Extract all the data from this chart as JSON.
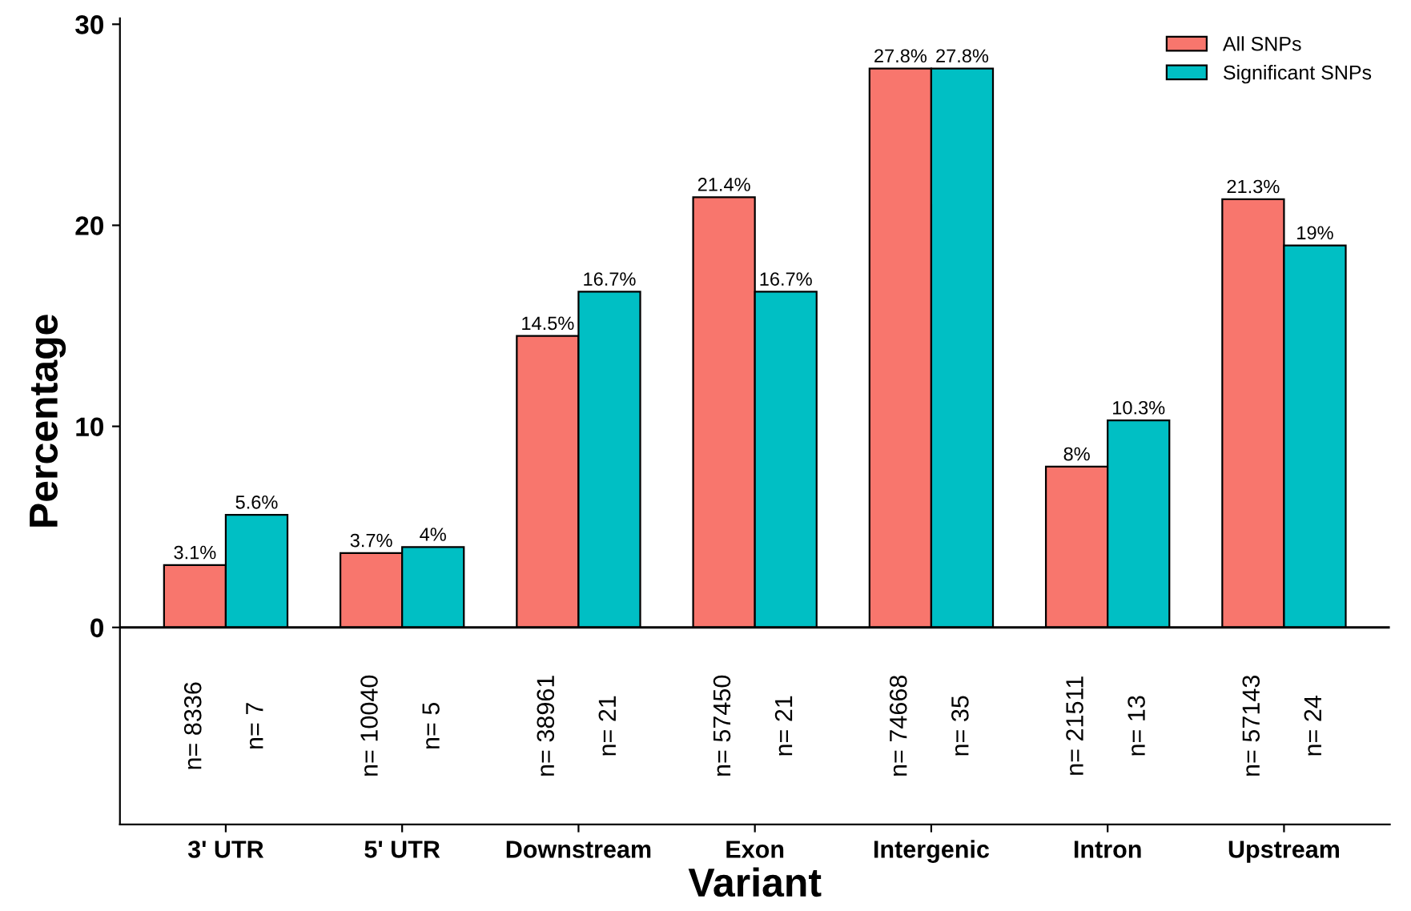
{
  "chart_data": {
    "type": "bar",
    "xlabel": "Variant",
    "ylabel": "Percentage",
    "categories": [
      "3' UTR",
      "5' UTR",
      "Downstream",
      "Exon",
      "Intergenic",
      "Intron",
      "Upstream"
    ],
    "series": [
      {
        "name": "All SNPs",
        "color": "#f8766d",
        "values": [
          3.1,
          3.7,
          14.5,
          21.4,
          27.8,
          8,
          21.3
        ],
        "value_labels": [
          "3.1%",
          "3.7%",
          "14.5%",
          "21.4%",
          "27.8%",
          "8%",
          "21.3%"
        ]
      },
      {
        "name": "Significant SNPs",
        "color": "#00bfc4",
        "values": [
          5.6,
          4,
          16.7,
          16.7,
          27.8,
          10.3,
          19
        ],
        "value_labels": [
          "5.6%",
          "4%",
          "16.7%",
          "16.7%",
          "27.8%",
          "10.3%",
          "19%"
        ]
      }
    ],
    "annotations": [
      "n= 8336",
      "n= 7",
      "n= 10040",
      "n= 5",
      "n= 38961",
      "n= 21",
      "n= 57450",
      "n= 21",
      "n= 74668",
      "n= 35",
      "n= 21511",
      "n= 13",
      "n= 57143",
      "n= 24"
    ],
    "ylim": [
      -9.8,
      30.3
    ],
    "yticks": [
      0,
      10,
      20,
      30
    ],
    "ref_lines": [
      {
        "axis": "y",
        "value": 0,
        "color": "#000000"
      }
    ],
    "legend": "top right",
    "grid": false
  }
}
